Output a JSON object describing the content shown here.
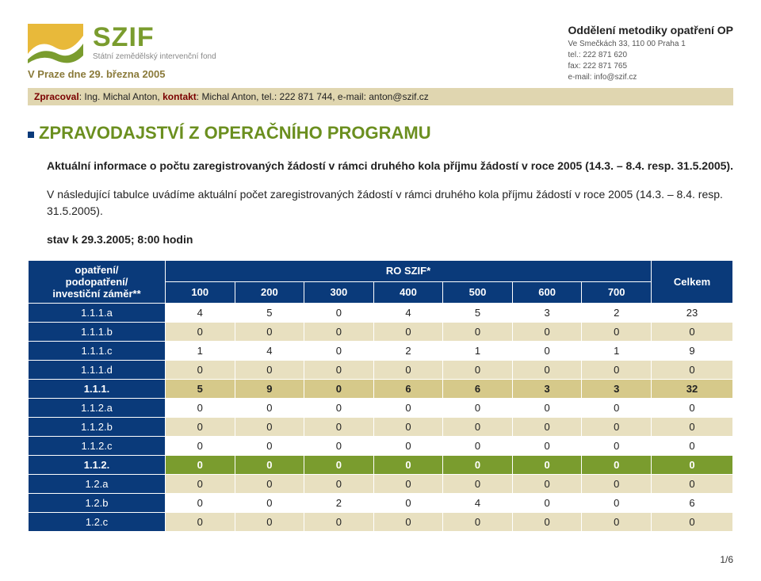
{
  "header": {
    "logo_main": "SZIF",
    "logo_sub": "Státní zemědělský intervenční fond",
    "date_line": "V Praze dne 29. března 2005",
    "dept_title": "Oddělení metodiky opatření OP",
    "address": "Ve Smečkách 33, 110 00 Praha 1",
    "tel": "tel.: 222 871 620",
    "fax": "fax: 222 871 765",
    "email": "e-mail: info@szif.cz",
    "zprac_label": "Zpracoval",
    "zprac_name": ": Ing. Michal Anton, ",
    "kontakt_label": "kontakt",
    "kontakt_val": ": Michal Anton, tel.: 222 871 744, e-mail: anton@szif.cz"
  },
  "title": "ZPRAVODAJSTVÍ Z OPERAČNÍHO PROGRAMU",
  "p1a": "Aktuální informace o počtu zaregistrovaných žádostí v rámci druhého kola příjmu žádostí v roce 2005 (14.3. – 8.4. resp. 31.5.2005).",
  "p2": "V následující tabulce uvádíme aktuální počet zaregistrovaných žádostí v rámci druhého kola příjmu žádostí v roce 2005 (14.3. – 8.4. resp. 31.5.2005).",
  "p3": "stav k 29.3.2005; 8:00 hodin",
  "table": {
    "head_left": "opatření/\npodopatření/\ninvestiční záměr**",
    "head_group": "RO SZIF*",
    "head_total": "Celkem",
    "cols": [
      "100",
      "200",
      "300",
      "400",
      "500",
      "600",
      "700"
    ],
    "rows": [
      {
        "label": "1.1.1.a",
        "vals": [
          4,
          5,
          0,
          4,
          5,
          3,
          2,
          23
        ],
        "style": "white"
      },
      {
        "label": "1.1.1.b",
        "vals": [
          0,
          0,
          0,
          0,
          0,
          0,
          0,
          0
        ],
        "style": "beige"
      },
      {
        "label": "1.1.1.c",
        "vals": [
          1,
          4,
          0,
          2,
          1,
          0,
          1,
          9
        ],
        "style": "white"
      },
      {
        "label": "1.1.1.d",
        "vals": [
          0,
          0,
          0,
          0,
          0,
          0,
          0,
          0
        ],
        "style": "beige"
      },
      {
        "label": "1.1.1.",
        "vals": [
          5,
          9,
          0,
          6,
          6,
          3,
          3,
          32
        ],
        "style": "total"
      },
      {
        "label": "1.1.2.a",
        "vals": [
          0,
          0,
          0,
          0,
          0,
          0,
          0,
          0
        ],
        "style": "white"
      },
      {
        "label": "1.1.2.b",
        "vals": [
          0,
          0,
          0,
          0,
          0,
          0,
          0,
          0
        ],
        "style": "beige"
      },
      {
        "label": "1.1.2.c",
        "vals": [
          0,
          0,
          0,
          0,
          0,
          0,
          0,
          0
        ],
        "style": "white"
      },
      {
        "label": "1.1.2.",
        "vals": [
          0,
          0,
          0,
          0,
          0,
          0,
          0,
          0
        ],
        "style": "grand"
      },
      {
        "label": "1.2.a",
        "vals": [
          0,
          0,
          0,
          0,
          0,
          0,
          0,
          0
        ],
        "style": "beige"
      },
      {
        "label": "1.2.b",
        "vals": [
          0,
          0,
          2,
          0,
          4,
          0,
          0,
          6
        ],
        "style": "white"
      },
      {
        "label": "1.2.c",
        "vals": [
          0,
          0,
          0,
          0,
          0,
          0,
          0,
          0
        ],
        "style": "beige"
      }
    ]
  },
  "page_num": "1/6",
  "colors": {
    "header_blue": "#0a3a7a",
    "green": "#7a9c2e",
    "beige": "#e8e0c0",
    "total_beige": "#d6c98a",
    "bar_beige": "#e0d6b0"
  }
}
